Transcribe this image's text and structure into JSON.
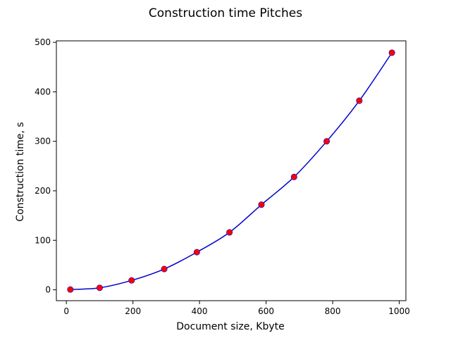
{
  "chart_data": {
    "type": "scatter",
    "title": "Construction time Pitches",
    "xlabel": "Document size, Kbyte",
    "ylabel": "Construction time, s",
    "xlim": [
      -30,
      1020
    ],
    "ylim": [
      -22,
      503
    ],
    "xticks": [
      0,
      200,
      400,
      600,
      800,
      1000
    ],
    "yticks": [
      0,
      100,
      200,
      300,
      400,
      500
    ],
    "xtick_labels": [
      "0",
      "200",
      "400",
      "600",
      "800",
      "1000"
    ],
    "ytick_labels": [
      "0",
      "100",
      "200",
      "300",
      "400",
      "500"
    ],
    "grid": false,
    "series": [
      {
        "kind": "points",
        "color": "#ff0000",
        "x": [
          12,
          100,
          196,
          294,
          392,
          490,
          586,
          684,
          782,
          880,
          978
        ],
        "y": [
          0.5,
          4,
          19,
          42,
          76,
          116,
          172,
          228,
          300,
          382,
          479
        ]
      },
      {
        "kind": "fit-curve",
        "color": "#0000cc",
        "x": [
          12,
          100,
          196,
          294,
          392,
          490,
          586,
          684,
          782,
          880,
          978
        ],
        "y": [
          0.5,
          4,
          19,
          42,
          76,
          116,
          172,
          228,
          300,
          382,
          479
        ]
      }
    ]
  }
}
